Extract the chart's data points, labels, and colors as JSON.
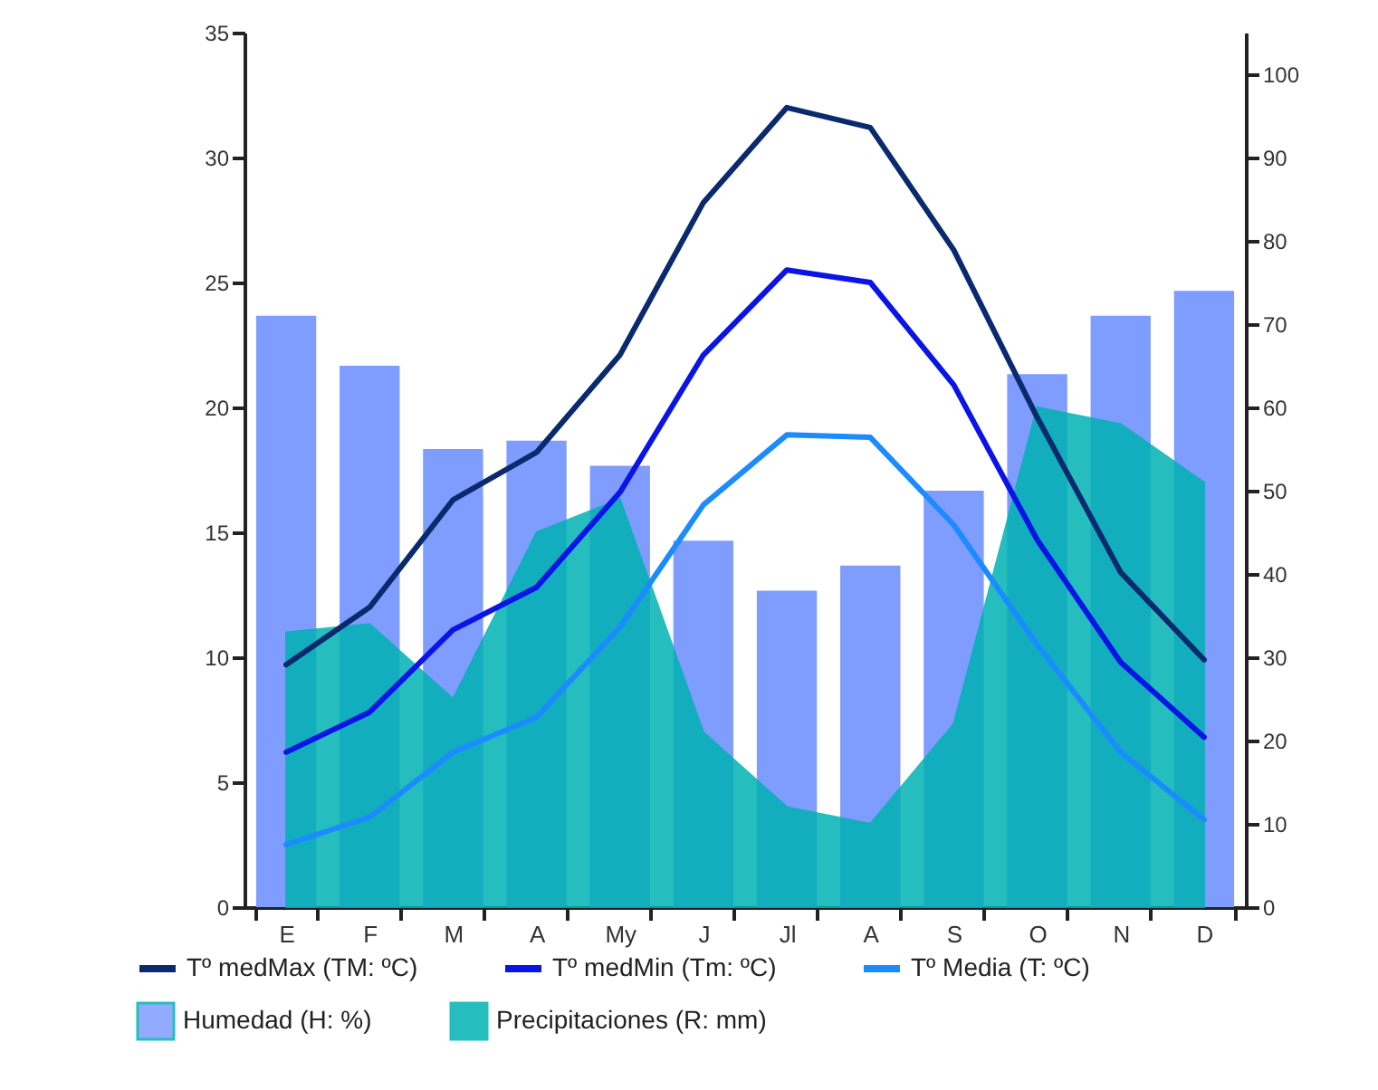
{
  "chart_data": {
    "type": "line",
    "categories": [
      "E",
      "F",
      "M",
      "A",
      "My",
      "J",
      "Jl",
      "A",
      "S",
      "O",
      "N",
      "D"
    ],
    "ylim": [
      0,
      35
    ],
    "yticks": [
      0,
      5,
      10,
      15,
      20,
      25,
      30,
      35
    ],
    "y2lim": [
      0,
      105
    ],
    "y2ticks": [
      0,
      10,
      20,
      30,
      40,
      50,
      60,
      70,
      80,
      90,
      100
    ],
    "legend": "bottom",
    "series": [
      {
        "name": "Humedad (H: %)",
        "type": "bar",
        "axis": "y2",
        "color": "#7f9cff",
        "values": [
          71,
          65,
          55,
          56,
          53,
          44,
          38,
          41,
          50,
          64,
          71,
          74
        ]
      },
      {
        "name": "Precipitaciones (R: mm)",
        "type": "area",
        "axis": "y2",
        "color": "#00b2b2",
        "values": [
          33,
          34,
          25,
          45,
          49,
          21,
          12,
          10,
          22,
          60,
          58,
          51
        ]
      },
      {
        "name": "Tº medMax (TM: ºC)",
        "axis": "y",
        "color": "#0a2a6e",
        "values": [
          9.7,
          12.0,
          16.3,
          18.2,
          22.1,
          28.2,
          32.0,
          31.2,
          26.3,
          19.6,
          13.4,
          9.9
        ]
      },
      {
        "name": "Tº medMin (Tm: ºC)",
        "axis": "y",
        "color": "#0a14e6",
        "values": [
          6.2,
          7.8,
          11.1,
          12.8,
          16.6,
          22.1,
          25.5,
          25.0,
          20.9,
          14.7,
          9.8,
          6.8
        ]
      },
      {
        "name": "Tº Media (T: ºC)",
        "axis": "y",
        "color": "#1a8cff",
        "values": [
          2.5,
          3.6,
          6.2,
          7.6,
          11.2,
          16.1,
          18.9,
          18.8,
          15.3,
          10.5,
          6.2,
          3.5
        ]
      }
    ]
  }
}
